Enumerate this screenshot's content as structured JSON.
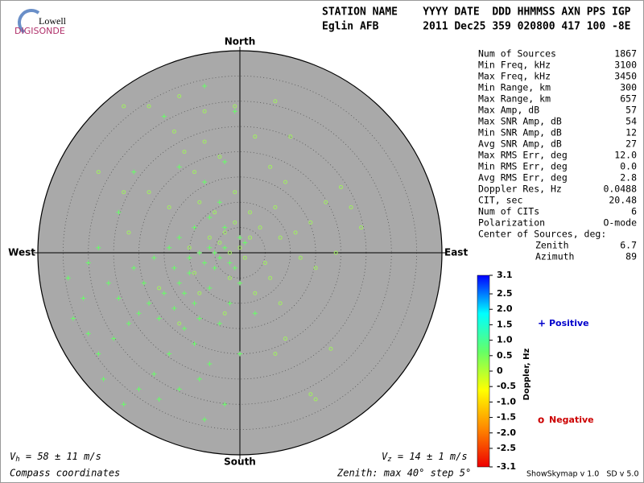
{
  "logo": {
    "top": "Lowell",
    "bottom": "DIGISONDE"
  },
  "header": {
    "line1": "STATION NAME    YYYY DATE  DDD HHMMSS AXN PPS IGP",
    "line2": "Eglin AFB       2011 Dec25 359 020800 417 100 -8E"
  },
  "stats": [
    [
      "Num of Sources",
      "1867"
    ],
    [
      "Min Freq, kHz",
      "3100"
    ],
    [
      "Max Freq, kHz",
      "3450"
    ],
    [
      "Min Range, km",
      "300"
    ],
    [
      "Max Range, km",
      "657"
    ],
    [
      "Max Amp, dB",
      "57"
    ],
    [
      "Max SNR Amp, dB",
      "54"
    ],
    [
      "Min SNR Amp, dB",
      "12"
    ],
    [
      "Avg SNR Amp, dB",
      "27"
    ],
    [
      "Max RMS Err, deg",
      "12.0"
    ],
    [
      "Min RMS Err, deg",
      "0.0"
    ],
    [
      "Avg RMS Err, deg",
      "2.8"
    ],
    [
      "Doppler Res, Hz",
      "0.0488"
    ],
    [
      "CIT, sec",
      "20.48"
    ],
    [
      "Num of CITs",
      "6"
    ],
    [
      "Polarization",
      "O-mode"
    ]
  ],
  "center": {
    "title": "Center of Sources, deg:",
    "rows": [
      [
        "Zenith",
        "6.7"
      ],
      [
        "Azimuth",
        "89"
      ]
    ]
  },
  "footer": {
    "vh": {
      "symbol": "V",
      "sub": "h",
      "text": " = 58 ± 11 m/s"
    },
    "vz": {
      "symbol": "V",
      "sub": "z",
      "text": " = 14 ± 1 m/s"
    },
    "coords": "Compass coordinates",
    "zenith": "Zenith: max 40°  step 5°",
    "version": "ShowSkymap v 1.0   SD v 5.0"
  },
  "chart_data": {
    "type": "scatter",
    "directions": {
      "north": "North",
      "south": "South",
      "east": "East",
      "west": "West"
    },
    "xlim": [
      -40,
      40
    ],
    "ylim": [
      -40,
      40
    ],
    "rings": [
      5,
      10,
      15,
      20,
      25,
      30,
      35,
      40
    ],
    "plot_color": "#a9a9a9",
    "series": [
      {
        "name": "Positive",
        "symbol": "+",
        "color": "#66ff66",
        "legend_color": "#0000cc",
        "x": [
          -5,
          -6,
          -4,
          -7,
          -3,
          -8,
          -5,
          -10,
          -12,
          -15,
          -18,
          -20,
          -22,
          -25,
          -28,
          -30,
          -24,
          -19,
          -16,
          -13,
          -11,
          -9,
          -14,
          -17,
          -20,
          -8,
          -6,
          -4,
          -2,
          0,
          -1,
          1,
          -3,
          -6,
          -9,
          -12,
          -14,
          -17,
          -21,
          -26,
          -31,
          -33,
          -27,
          -23,
          -16,
          -12,
          -7,
          -9,
          -6,
          -10,
          -2,
          0,
          -4,
          -7,
          -3,
          -1,
          -7,
          -15,
          -12,
          -21,
          -24,
          -28,
          -30,
          -34,
          -3,
          0,
          3,
          -11,
          -13,
          -8
        ],
        "y": [
          0,
          1,
          -1,
          -2,
          1,
          0,
          -3,
          -4,
          -6,
          -8,
          -10,
          -12,
          -14,
          -17,
          -20,
          -16,
          -9,
          -6,
          -13,
          -11,
          -15,
          -18,
          -20,
          -24,
          -27,
          -25,
          -22,
          -14,
          -10,
          -6,
          -3,
          2,
          5,
          7,
          5,
          3,
          1,
          -1,
          -3,
          -6,
          -9,
          -13,
          -25,
          -30,
          -29,
          -27,
          -33,
          -10,
          -7,
          -1,
          -2,
          3,
          10,
          14,
          18,
          28,
          33,
          27,
          17,
          16,
          8,
          1,
          -2,
          -5,
          -30,
          -20,
          -12,
          -8,
          -3,
          -13
        ]
      },
      {
        "name": "Negative",
        "symbol": "o",
        "color": "#a0f060",
        "legend_color": "#cc0000",
        "x": [
          -4,
          -3,
          -6,
          -2,
          0,
          1,
          2,
          -1,
          -5,
          -8,
          -9,
          -11,
          -13,
          -18,
          -23,
          -7,
          -4,
          -1,
          2,
          4,
          5,
          6,
          3,
          7,
          9,
          6,
          8,
          11,
          14,
          17,
          20,
          22,
          24,
          19,
          15,
          12,
          -14,
          -18,
          -22,
          -16,
          -12,
          -8,
          -2,
          9,
          14,
          15,
          18,
          7,
          -23,
          -28,
          -7,
          -1,
          -12,
          3,
          7,
          -10,
          -9,
          -3,
          8,
          10
        ],
        "y": [
          2,
          4,
          3,
          0,
          1,
          -1,
          3,
          6,
          8,
          10,
          16,
          20,
          24,
          29,
          29,
          22,
          19,
          12,
          8,
          5,
          -2,
          -5,
          -8,
          9,
          14,
          17,
          3,
          4,
          6,
          10,
          13,
          9,
          5,
          0,
          -3,
          -1,
          9,
          12,
          4,
          -7,
          -14,
          -8,
          -5,
          -17,
          -28,
          -29,
          -19,
          -20,
          12,
          16,
          28,
          29,
          31,
          23,
          30,
          1,
          -4,
          -12,
          -10,
          23
        ]
      }
    ],
    "colorbar": {
      "label": "Doppler, Hz",
      "lim": [
        -3.1,
        3.1
      ],
      "ticks": [
        3.1,
        2.5,
        {
          "value": 2,
          "label": "2.0"
        },
        1.5,
        {
          "value": 1,
          "label": "1.0"
        },
        0.5,
        0,
        -0.5,
        {
          "value": -1,
          "label": "-1.0"
        },
        -1.5,
        {
          "value": -2,
          "label": "-2.0"
        },
        -2.5,
        -3.1
      ],
      "colors": [
        "#ee0000",
        "#ff8800",
        "#ffff00",
        "#66ff66",
        "#00ffff",
        "#0000ff"
      ]
    }
  }
}
